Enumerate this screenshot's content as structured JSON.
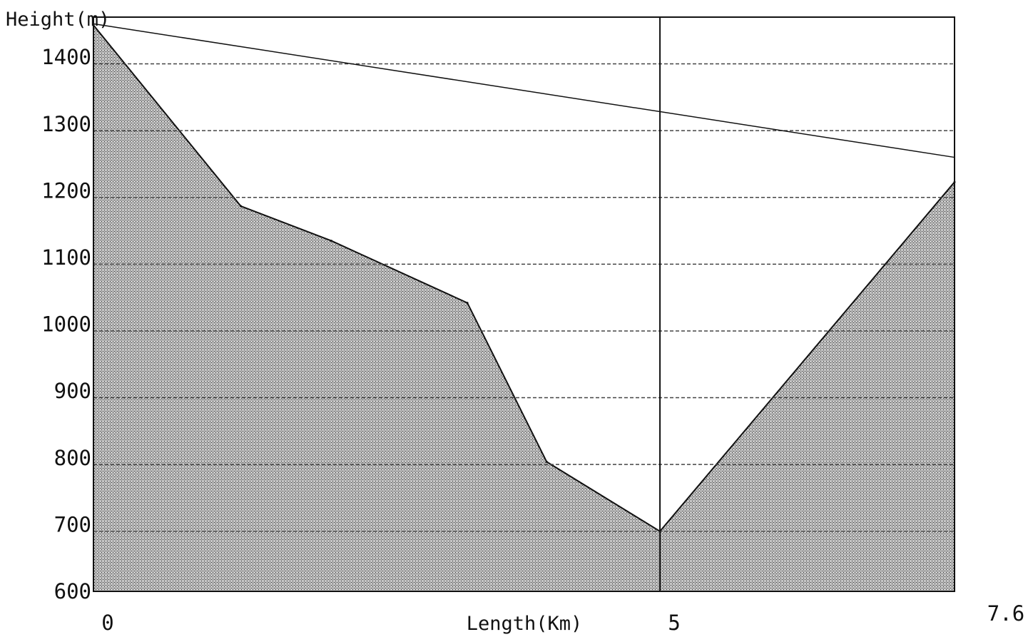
{
  "chart_data": {
    "type": "area",
    "ylabel": "Height(m)",
    "xlabel": "Length(Km)",
    "xlim": [
      0,
      7.6
    ],
    "ylim": [
      600,
      1460
    ],
    "x_ticks": [
      {
        "value": 0,
        "label": "0"
      },
      {
        "value": 5,
        "label": "5"
      },
      {
        "value": 7.6,
        "label": "7.6"
      }
    ],
    "y_ticks": [
      {
        "value": 600,
        "label": "600"
      },
      {
        "value": 700,
        "label": "700"
      },
      {
        "value": 800,
        "label": "800"
      },
      {
        "value": 900,
        "label": "900"
      },
      {
        "value": 1000,
        "label": "1000"
      },
      {
        "value": 1100,
        "label": "1100"
      },
      {
        "value": 1200,
        "label": "1200"
      },
      {
        "value": 1300,
        "label": "1300"
      },
      {
        "value": 1400,
        "label": "1400"
      }
    ],
    "grid": true,
    "grid_values": [
      690,
      790,
      890,
      990,
      1090,
      1190,
      1290,
      1390
    ],
    "series": [
      {
        "kind": "terrain",
        "fill": "stippled gray",
        "points": [
          {
            "x": 0,
            "y": 1448
          },
          {
            "x": 1.3,
            "y": 1177
          },
          {
            "x": 2.1,
            "y": 1125
          },
          {
            "x": 3.3,
            "y": 1032
          },
          {
            "x": 4.0,
            "y": 794
          },
          {
            "x": 5.0,
            "y": 690
          },
          {
            "x": 7.6,
            "y": 1213
          }
        ]
      },
      {
        "kind": "line-of-sight",
        "points": [
          {
            "x": 0,
            "y": 1450
          },
          {
            "x": 7.6,
            "y": 1250
          }
        ]
      }
    ],
    "marker_x": 5.0
  },
  "colors": {
    "terrain_fill": "#a9a9a9",
    "line": "#111111",
    "grid": "#444444",
    "background": "#ffffff"
  }
}
